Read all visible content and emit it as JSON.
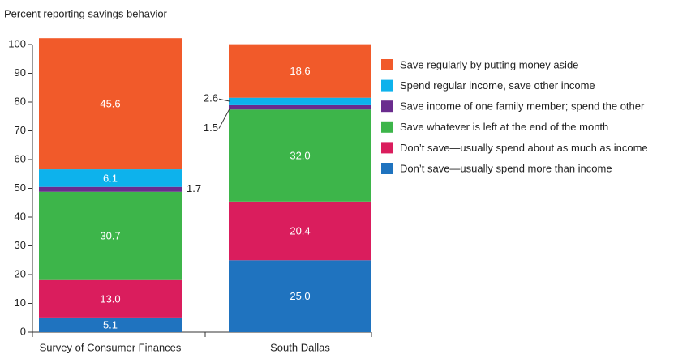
{
  "chart_data": {
    "type": "stacked_bar",
    "ylabel": "Percent reporting savings behavior",
    "categories": [
      "Survey of Consumer Finances",
      "South Dallas"
    ],
    "ylim": [
      0,
      100
    ],
    "yticks": [
      0,
      10,
      20,
      30,
      40,
      50,
      60,
      70,
      80,
      90,
      100
    ],
    "series": [
      {
        "name": "Don’t save—usually spend more than income",
        "color": "#1f73bf",
        "values": [
          5.1,
          25.0
        ],
        "value_labels": [
          "5.1",
          "25.0"
        ]
      },
      {
        "name": "Don’t save—usually spend about as much as income",
        "color": "#da1d5d",
        "values": [
          13.0,
          20.4
        ],
        "value_labels": [
          "13.0",
          "20.4"
        ]
      },
      {
        "name": "Save whatever is left at the end of the month",
        "color": "#3db54a",
        "values": [
          30.7,
          32.0
        ],
        "value_labels": [
          "30.7",
          "32.0"
        ]
      },
      {
        "name": "Save income of one family member; spend the other",
        "color": "#6a2c8e",
        "values": [
          1.7,
          1.5
        ],
        "value_labels": [
          "1.7",
          "1.5"
        ]
      },
      {
        "name": "Spend regular income, save other income",
        "color": "#0db2ec",
        "values": [
          6.1,
          2.6
        ],
        "value_labels": [
          "6.1",
          "2.6"
        ]
      },
      {
        "name": "Save regularly by putting money aside",
        "color": "#f15a2a",
        "values": [
          45.6,
          18.6
        ],
        "value_labels": [
          "45.6",
          "18.6"
        ]
      }
    ]
  }
}
